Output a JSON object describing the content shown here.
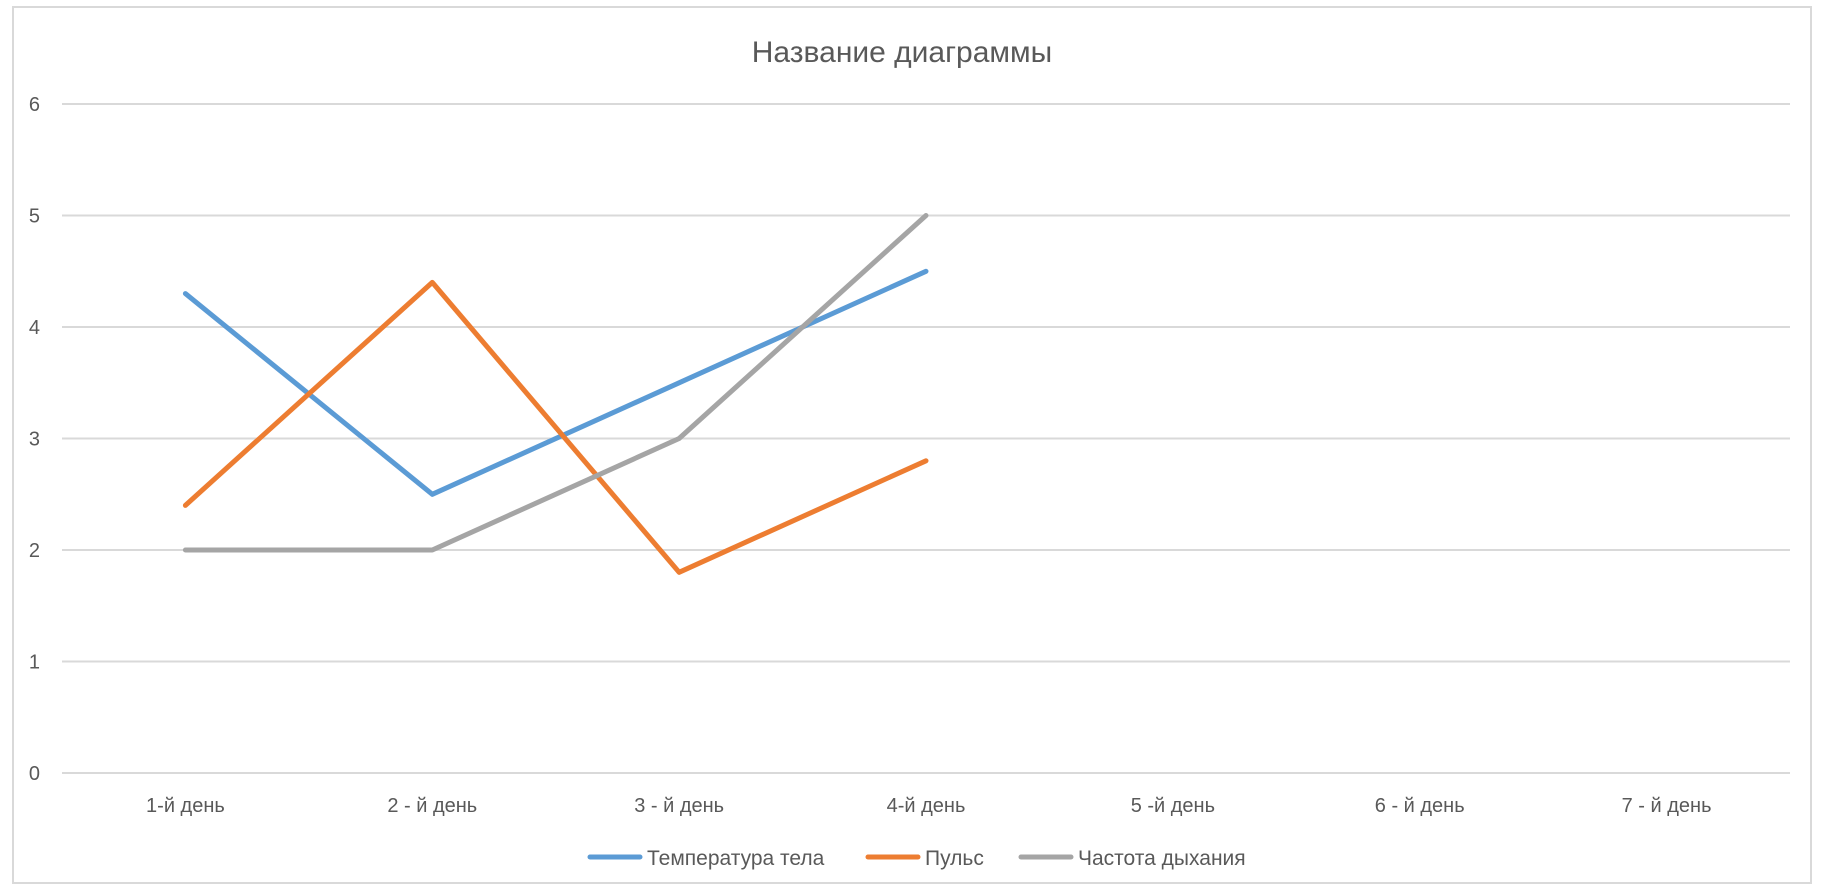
{
  "chart_data": {
    "type": "line",
    "title": "Название диаграммы",
    "xlabel": "",
    "ylabel": "",
    "categories": [
      "1-й день",
      "2 - й день",
      "3 - й день",
      "4-й день",
      "5 -й день",
      "6 - й день",
      "7 - й день"
    ],
    "ylim": [
      0,
      6
    ],
    "yticks": [
      0,
      1,
      2,
      3,
      4,
      5,
      6
    ],
    "grid": true,
    "legend_position": "bottom",
    "series": [
      {
        "name": "Температура тела",
        "color": "#5b9bd5",
        "values": [
          4.3,
          2.5,
          3.5,
          4.5,
          null,
          null,
          null
        ]
      },
      {
        "name": "Пульс",
        "color": "#ed7d31",
        "values": [
          2.4,
          4.4,
          1.8,
          2.8,
          null,
          null,
          null
        ]
      },
      {
        "name": "Частота дыхания",
        "color": "#a5a5a5",
        "values": [
          2,
          2,
          3,
          5,
          null,
          null,
          null
        ]
      }
    ]
  }
}
